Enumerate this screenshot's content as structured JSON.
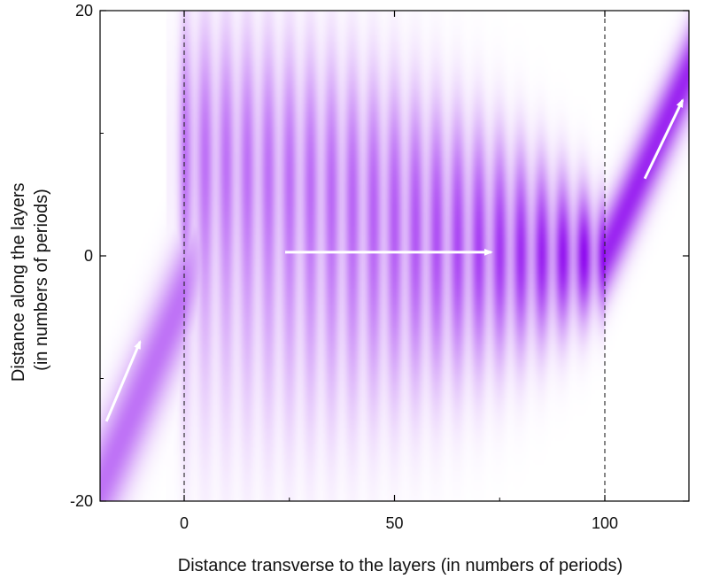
{
  "chart_data": {
    "type": "heatmap",
    "title": "",
    "xlabel": "Distance transverse to the layers (in numbers of periods)",
    "ylabel_lines": [
      "Distance along the layers",
      "(in numbers of periods)"
    ],
    "xlim": [
      -20,
      120
    ],
    "ylim": [
      -20,
      20
    ],
    "x_ticks": [
      0,
      50,
      100
    ],
    "x_tick_labels": [
      "0",
      "50",
      "100"
    ],
    "y_ticks": [
      -20,
      0,
      20
    ],
    "y_tick_labels": [
      "-20",
      "0",
      "20"
    ],
    "y_minor_ticks": [
      -10,
      10
    ],
    "x_minor_ticks": [
      25,
      75
    ],
    "colormap": {
      "low": "#ffffff",
      "high": "#8a00ee"
    },
    "boundaries": [
      0,
      100
    ],
    "beam": {
      "incident": {
        "x_range": [
          -20,
          0
        ],
        "y_at_start": -19,
        "y_at_end": -3,
        "width": 3.5,
        "peak": 0.55
      },
      "inside": {
        "x_range": [
          0,
          100
        ],
        "center_y": 0,
        "modulation_period": 5,
        "width_at_start": 11,
        "width_at_end": 3,
        "peak_at_start": 0.3,
        "peak_at_end": 1.0
      },
      "transmitted": {
        "x_range": [
          100,
          120
        ],
        "y_at_start": 0,
        "y_at_end": 15,
        "width": 2.5,
        "peak": 0.85
      }
    },
    "arrows": [
      {
        "from": [
          -18.5,
          -13.5
        ],
        "to": [
          -10.5,
          -7
        ]
      },
      {
        "from": [
          24,
          0.3
        ],
        "to": [
          73,
          0.3
        ]
      },
      {
        "from": [
          109.5,
          6.3
        ],
        "to": [
          118.5,
          12.7
        ]
      }
    ]
  }
}
